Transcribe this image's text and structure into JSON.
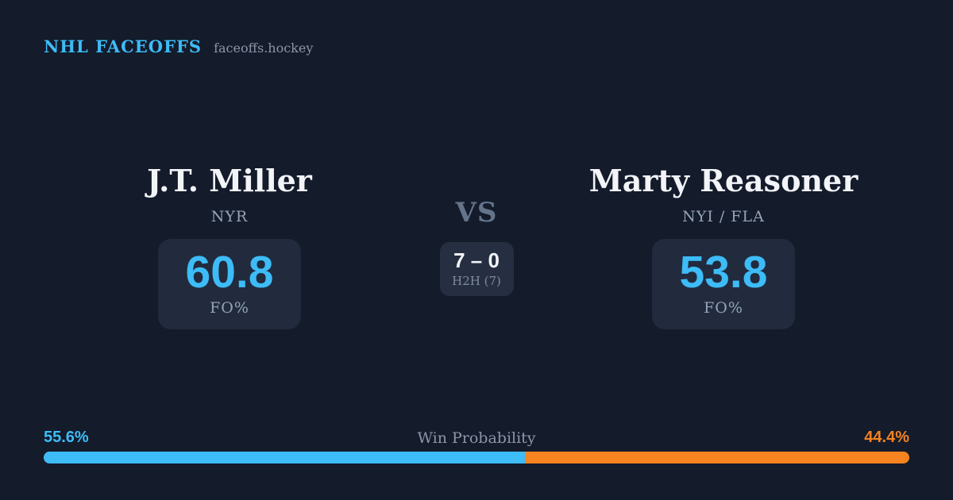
{
  "header": {
    "brand": "NHL FACEOFFS",
    "site": "faceoffs.hockey"
  },
  "players": {
    "left": {
      "name": "J.T. Miller",
      "team": "NYR",
      "stat_value": "60.8",
      "stat_label": "FO%"
    },
    "right": {
      "name": "Marty Reasoner",
      "team": "NYI / FLA",
      "stat_value": "53.8",
      "stat_label": "FO%"
    }
  },
  "versus": {
    "label": "VS",
    "h2h_score": "7 – 0",
    "h2h_label": "H2H (7)"
  },
  "win_probability": {
    "label": "Win Probability",
    "left_pct_label": "55.6%",
    "right_pct_label": "44.4%",
    "left_value": 55.6,
    "right_value": 44.4,
    "left_bar_style": "width:55.6%"
  },
  "colors": {
    "background": "#141b2b",
    "card": "#212b3d",
    "h2h_box": "#252f41",
    "accent_blue": "#3dbcf7",
    "accent_orange": "#f5831f",
    "text_primary": "#f2f4f8",
    "text_muted": "#94a3b8",
    "vs_gray": "#64748b"
  }
}
